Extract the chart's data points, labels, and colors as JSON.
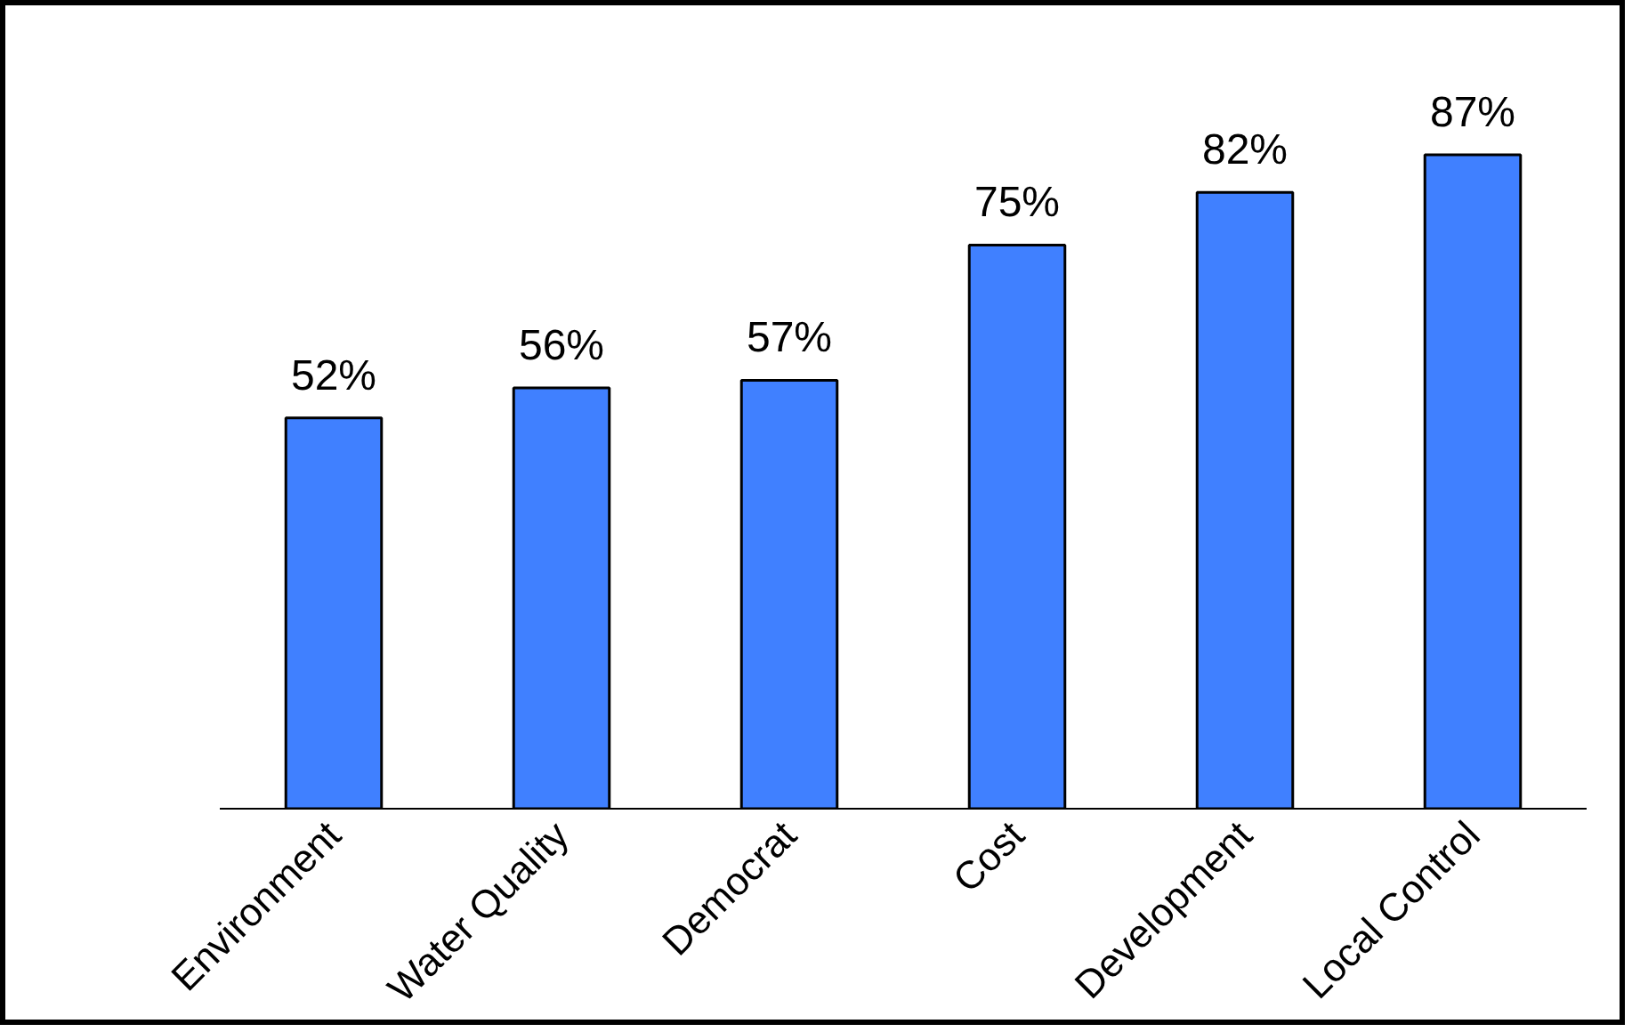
{
  "chart_data": {
    "type": "bar",
    "categories": [
      "Environment",
      "Water Quality",
      "Democrat",
      "Cost",
      "Development",
      "Local Control"
    ],
    "values": [
      52,
      56,
      57,
      75,
      82,
      87
    ],
    "value_labels": [
      "52%",
      "56%",
      "57%",
      "75%",
      "82%",
      "87%"
    ],
    "color": "#4080ff",
    "grid": false
  }
}
